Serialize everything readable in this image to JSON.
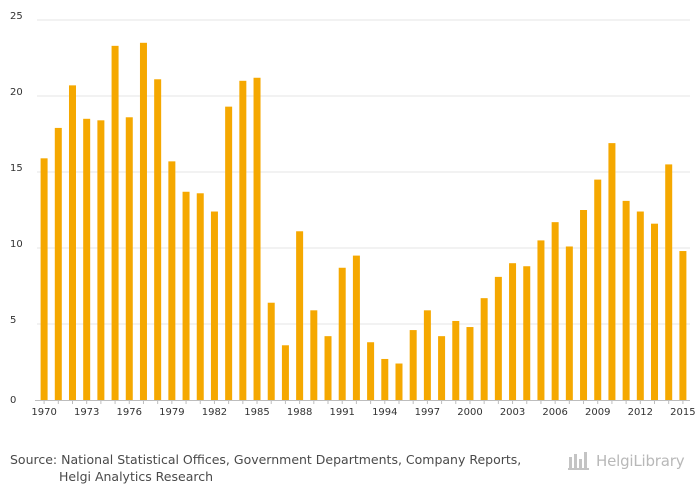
{
  "chart_data": {
    "type": "bar",
    "title": "",
    "xlabel": "",
    "ylabel": "",
    "ylim": [
      0,
      25
    ],
    "yticks": [
      0,
      5,
      10,
      15,
      20,
      25
    ],
    "grid": true,
    "color": "#f5a800",
    "categories": [
      1970,
      1971,
      1972,
      1973,
      1974,
      1975,
      1976,
      1977,
      1978,
      1979,
      1980,
      1981,
      1982,
      1983,
      1984,
      1985,
      1986,
      1987,
      1988,
      1989,
      1990,
      1991,
      1992,
      1993,
      1994,
      1995,
      1996,
      1997,
      1998,
      1999,
      2000,
      2001,
      2002,
      2003,
      2004,
      2005,
      2006,
      2007,
      2008,
      2009,
      2010,
      2011,
      2012,
      2013,
      2014,
      2015
    ],
    "xtick_labels": [
      "1970",
      "1973",
      "1976",
      "1979",
      "1982",
      "1985",
      "1988",
      "1991",
      "1994",
      "1997",
      "2000",
      "2003",
      "2006",
      "2009",
      "2012",
      "2015"
    ],
    "values": [
      15.9,
      17.9,
      20.7,
      18.5,
      18.4,
      23.3,
      18.6,
      23.5,
      21.1,
      15.7,
      13.7,
      13.6,
      12.4,
      19.3,
      21.0,
      21.2,
      6.4,
      3.6,
      11.1,
      5.9,
      4.2,
      8.7,
      9.5,
      3.8,
      2.7,
      2.4,
      4.6,
      5.9,
      4.2,
      5.2,
      4.8,
      6.7,
      8.1,
      9.0,
      8.8,
      10.5,
      11.7,
      10.1,
      12.5,
      14.5,
      16.9,
      13.1,
      12.4,
      11.6,
      15.5,
      9.8
    ]
  },
  "source": {
    "prefix": "Source:",
    "line1": "National Statistical Offices, Government Departments, Company Reports,",
    "line2": "Helgi Analytics Research"
  },
  "logo": {
    "text": "HelgiLibrary"
  }
}
